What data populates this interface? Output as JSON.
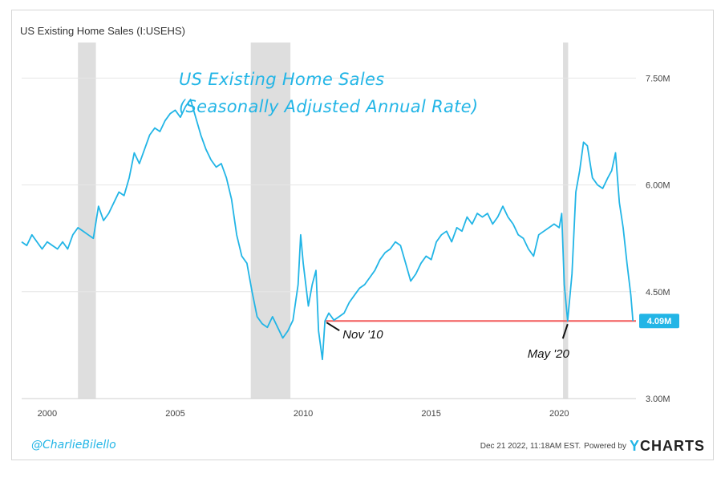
{
  "chart_title": "US Existing Home Sales (I:USEHS)",
  "annotation": {
    "line1": "US Existing Home Sales",
    "line2": "(Seasonally Adjusted Annual Rate)"
  },
  "handle": "@CharlieBilello",
  "footer": {
    "timestamp": "Dec 21 2022, 11:18AM EST.",
    "powered_by": "Powered by",
    "brand_y": "Y",
    "brand_rest": "CHARTS"
  },
  "colors": {
    "series": "#22b5e6",
    "reference_line": "#f25c5c",
    "recession": "#dedede",
    "label_bg": "#22b5e6"
  },
  "chart_data": {
    "type": "line",
    "title": "US Existing Home Sales (I:USEHS)",
    "xlim": [
      1999.0,
      2023.0
    ],
    "ylim": [
      3.0,
      8.0
    ],
    "x_ticks": [
      2000,
      2005,
      2010,
      2015,
      2020
    ],
    "x_tick_labels": [
      "2000",
      "2005",
      "2010",
      "2015",
      "2020"
    ],
    "y_ticks": [
      3.0,
      4.5,
      6.0,
      7.5
    ],
    "y_tick_labels": [
      "3.00M",
      "4.50M",
      "6.00M",
      "7.50M"
    ],
    "grid": "horizontal",
    "recessions": [
      [
        2001.2,
        2001.9
      ],
      [
        2007.95,
        2009.5
      ],
      [
        2020.15,
        2020.35
      ]
    ],
    "reference_line": {
      "y": 4.09,
      "x_start": 2010.85,
      "x_end": 2023.0
    },
    "last_value_label": "4.09M",
    "last_value": 4.09,
    "callouts": [
      {
        "text": "Nov '10",
        "x": 2010.85,
        "y": 4.09
      },
      {
        "text": "May '20",
        "x": 2020.33,
        "y": 4.09
      }
    ],
    "series": [
      {
        "x": [
          1999.0,
          1999.2,
          1999.4,
          1999.6,
          1999.8,
          2000.0,
          2000.2,
          2000.4,
          2000.6,
          2000.8,
          2001.0,
          2001.2,
          2001.4,
          2001.6,
          2001.8,
          2002.0,
          2002.2,
          2002.4,
          2002.6,
          2002.8,
          2003.0,
          2003.2,
          2003.4,
          2003.6,
          2003.8,
          2004.0,
          2004.2,
          2004.4,
          2004.6,
          2004.8,
          2005.0,
          2005.2,
          2005.4,
          2005.6,
          2005.8,
          2006.0,
          2006.2,
          2006.4,
          2006.6,
          2006.8,
          2007.0,
          2007.2,
          2007.4,
          2007.6,
          2007.8,
          2008.0,
          2008.2,
          2008.4,
          2008.6,
          2008.8,
          2009.0,
          2009.2,
          2009.4,
          2009.6,
          2009.8,
          2009.9,
          2010.0,
          2010.2,
          2010.35,
          2010.5,
          2010.6,
          2010.75,
          2010.85,
          2011.0,
          2011.2,
          2011.4,
          2011.6,
          2011.8,
          2012.0,
          2012.2,
          2012.4,
          2012.6,
          2012.8,
          2013.0,
          2013.2,
          2013.4,
          2013.6,
          2013.8,
          2014.0,
          2014.2,
          2014.4,
          2014.6,
          2014.8,
          2015.0,
          2015.2,
          2015.4,
          2015.6,
          2015.8,
          2016.0,
          2016.2,
          2016.4,
          2016.6,
          2016.8,
          2017.0,
          2017.2,
          2017.4,
          2017.6,
          2017.8,
          2018.0,
          2018.2,
          2018.4,
          2018.6,
          2018.8,
          2019.0,
          2019.2,
          2019.4,
          2019.6,
          2019.8,
          2020.0,
          2020.1,
          2020.2,
          2020.33,
          2020.5,
          2020.65,
          2020.8,
          2020.95,
          2021.1,
          2021.3,
          2021.5,
          2021.7,
          2021.9,
          2022.05,
          2022.2,
          2022.35,
          2022.5,
          2022.65,
          2022.8,
          2022.88
        ],
        "values": [
          5.2,
          5.15,
          5.3,
          5.2,
          5.1,
          5.2,
          5.15,
          5.1,
          5.2,
          5.1,
          5.3,
          5.4,
          5.35,
          5.3,
          5.25,
          5.7,
          5.5,
          5.6,
          5.75,
          5.9,
          5.85,
          6.1,
          6.45,
          6.3,
          6.5,
          6.7,
          6.8,
          6.75,
          6.9,
          7.0,
          7.05,
          6.95,
          7.1,
          7.2,
          6.95,
          6.7,
          6.5,
          6.35,
          6.25,
          6.3,
          6.1,
          5.8,
          5.3,
          5.0,
          4.9,
          4.5,
          4.15,
          4.05,
          4.0,
          4.15,
          4.0,
          3.85,
          3.95,
          4.1,
          4.6,
          5.3,
          4.9,
          4.3,
          4.6,
          4.8,
          3.95,
          3.55,
          4.09,
          4.2,
          4.1,
          4.15,
          4.2,
          4.35,
          4.45,
          4.55,
          4.6,
          4.7,
          4.8,
          4.95,
          5.05,
          5.1,
          5.2,
          5.15,
          4.9,
          4.65,
          4.75,
          4.9,
          5.0,
          4.95,
          5.2,
          5.3,
          5.35,
          5.2,
          5.4,
          5.35,
          5.55,
          5.45,
          5.6,
          5.55,
          5.6,
          5.45,
          5.55,
          5.7,
          5.55,
          5.45,
          5.3,
          5.25,
          5.1,
          5.0,
          5.3,
          5.35,
          5.4,
          5.45,
          5.4,
          5.6,
          4.6,
          4.09,
          4.75,
          5.9,
          6.2,
          6.6,
          6.55,
          6.1,
          6.0,
          5.95,
          6.1,
          6.2,
          6.45,
          5.75,
          5.4,
          4.9,
          4.45,
          4.09
        ]
      }
    ]
  }
}
